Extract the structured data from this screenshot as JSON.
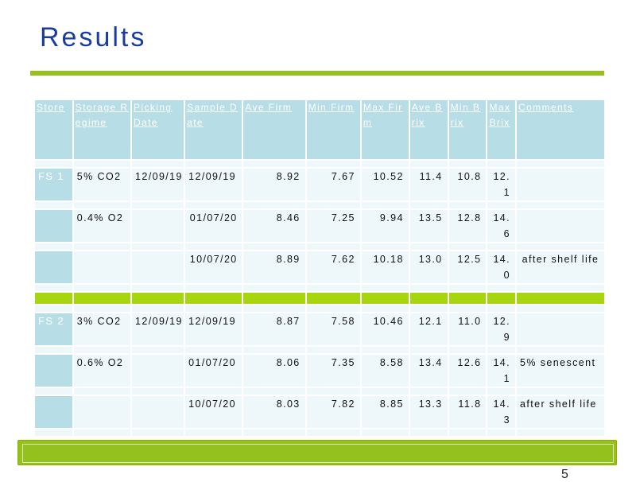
{
  "title": "Results",
  "page_number": "5",
  "table": {
    "headers": [
      "Store",
      "Storage Regime",
      "Picking Date",
      "Sample Date",
      "Ave Firm",
      "Min Firm",
      "Max Firm",
      "Ave Brix",
      "Min Brix",
      "Max Brix",
      "Comments"
    ],
    "groups": [
      {
        "store": "FS 1",
        "rows": [
          {
            "regime": "5% CO2",
            "picking": "12/09/19",
            "sample": "12/09/19",
            "ave_firm": "8.92",
            "min_firm": "7.67",
            "max_firm": "10.52",
            "ave_brix": "11.4",
            "min_brix": "10.8",
            "max_brix": "12.1",
            "comments": ""
          },
          {
            "regime": "0.4% O2",
            "picking": "",
            "sample": "01/07/20",
            "ave_firm": "8.46",
            "min_firm": "7.25",
            "max_firm": "9.94",
            "ave_brix": "13.5",
            "min_brix": "12.8",
            "max_brix": "14.6",
            "comments": ""
          },
          {
            "regime": "",
            "picking": "",
            "sample": "10/07/20",
            "ave_firm": "8.89",
            "min_firm": "7.62",
            "max_firm": "10.18",
            "ave_brix": "13.0",
            "min_brix": "12.5",
            "max_brix": "14.0",
            "comments": "after shelf life"
          }
        ]
      },
      {
        "store": "FS 2",
        "rows": [
          {
            "regime": "3% CO2",
            "picking": "12/09/19",
            "sample": "12/09/19",
            "ave_firm": "8.87",
            "min_firm": "7.58",
            "max_firm": "10.46",
            "ave_brix": "12.1",
            "min_brix": "11.0",
            "max_brix": "12.9",
            "comments": ""
          },
          {
            "regime": "0.6% O2",
            "picking": "",
            "sample": "01/07/20",
            "ave_firm": "8.06",
            "min_firm": "7.35",
            "max_firm": "8.58",
            "ave_brix": "13.4",
            "min_brix": "12.6",
            "max_brix": "14.1",
            "comments": "5% senescent"
          },
          {
            "regime": "",
            "picking": "",
            "sample": "10/07/20",
            "ave_firm": "8.03",
            "min_firm": "7.82",
            "max_firm": "8.85",
            "ave_brix": "13.3",
            "min_brix": "11.8",
            "max_brix": "14.3",
            "comments": "after shelf life"
          }
        ]
      }
    ]
  },
  "colors": {
    "title": "#1a3c9e",
    "accent_green": "#95c11f",
    "header_blue": "#b7dde6",
    "cell_bg": "#eef7f9"
  }
}
